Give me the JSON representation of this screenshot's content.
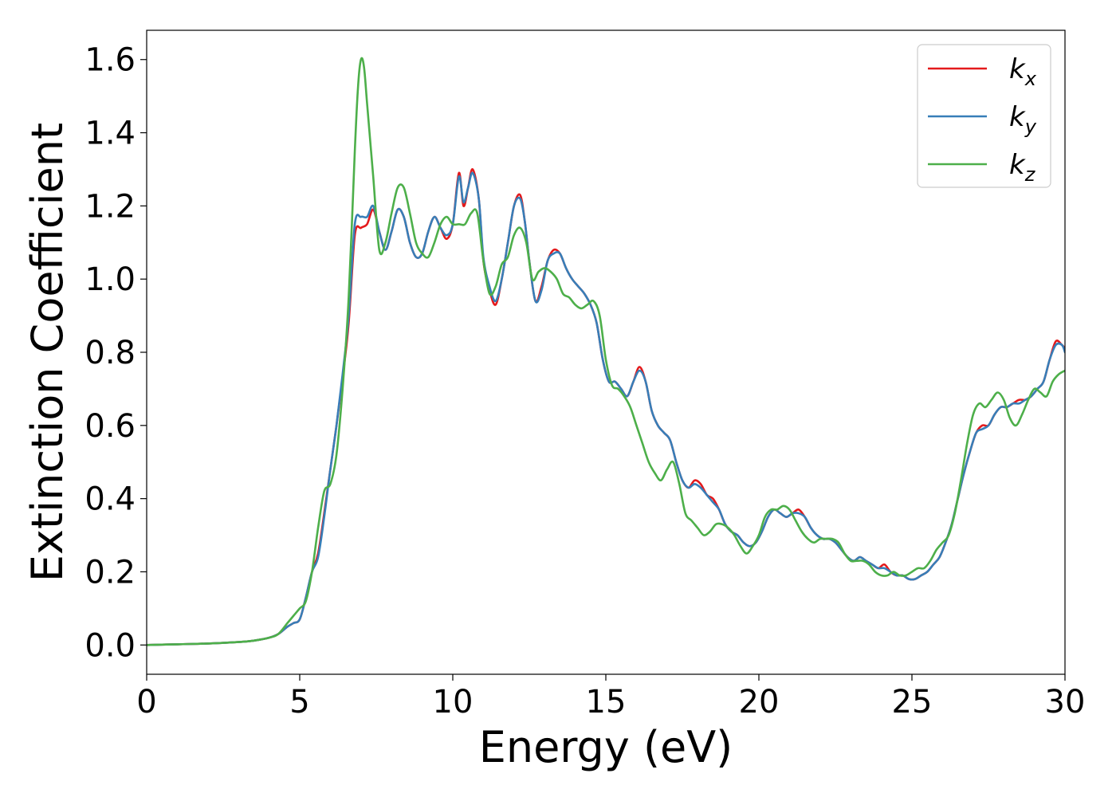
{
  "chart_data": {
    "type": "line",
    "title": "",
    "xlabel": "Energy (eV)",
    "ylabel": "Extinction Coefficient",
    "xlim": [
      0,
      30
    ],
    "ylim": [
      -0.08,
      1.68
    ],
    "xticks": [
      0,
      5,
      10,
      15,
      20,
      25,
      30
    ],
    "yticks": [
      0.0,
      0.2,
      0.4,
      0.6,
      0.8,
      1.0,
      1.2,
      1.4,
      1.6
    ],
    "grid": false,
    "legend_position": "top-right",
    "series": [
      {
        "name": "k_x",
        "label_main": "k",
        "label_sub": "x",
        "color": "#e41a1c",
        "x": [
          0,
          1,
          2,
          3,
          3.5,
          4,
          4.3,
          4.6,
          4.8,
          5,
          5.2,
          5.4,
          5.6,
          5.8,
          6,
          6.2,
          6.4,
          6.6,
          6.8,
          7,
          7.2,
          7.4,
          7.6,
          7.8,
          8,
          8.2,
          8.4,
          8.6,
          8.8,
          9,
          9.2,
          9.4,
          9.6,
          9.8,
          10,
          10.2,
          10.35,
          10.5,
          10.65,
          10.85,
          11,
          11.2,
          11.4,
          11.6,
          11.8,
          12,
          12.2,
          12.35,
          12.5,
          12.7,
          12.9,
          13.1,
          13.3,
          13.5,
          13.7,
          13.9,
          14.1,
          14.3,
          14.5,
          14.7,
          14.9,
          15.1,
          15.3,
          15.5,
          15.7,
          15.9,
          16.1,
          16.3,
          16.5,
          16.7,
          16.9,
          17.1,
          17.3,
          17.5,
          17.7,
          17.9,
          18.1,
          18.3,
          18.5,
          18.7,
          18.9,
          19.1,
          19.3,
          19.5,
          19.7,
          19.9,
          20.1,
          20.3,
          20.5,
          20.7,
          20.9,
          21.1,
          21.3,
          21.5,
          21.7,
          21.9,
          22.1,
          22.3,
          22.5,
          22.7,
          22.9,
          23.1,
          23.3,
          23.5,
          23.7,
          23.9,
          24.1,
          24.3,
          24.5,
          24.7,
          24.9,
          25.1,
          25.3,
          25.5,
          25.7,
          25.9,
          26.1,
          26.3,
          26.5,
          26.7,
          26.9,
          27.1,
          27.3,
          27.5,
          27.7,
          27.9,
          28.1,
          28.3,
          28.5,
          28.7,
          28.9,
          29.1,
          29.3,
          29.5,
          29.7,
          29.9,
          30
        ],
        "y": [
          0,
          0.002,
          0.004,
          0.008,
          0.012,
          0.02,
          0.03,
          0.05,
          0.06,
          0.07,
          0.13,
          0.2,
          0.25,
          0.36,
          0.48,
          0.6,
          0.73,
          0.88,
          1.12,
          1.14,
          1.15,
          1.19,
          1.13,
          1.08,
          1.13,
          1.19,
          1.17,
          1.1,
          1.06,
          1.07,
          1.13,
          1.17,
          1.14,
          1.11,
          1.15,
          1.29,
          1.2,
          1.25,
          1.3,
          1.22,
          1.05,
          0.97,
          0.93,
          1.0,
          1.1,
          1.2,
          1.23,
          1.16,
          1.05,
          0.94,
          0.98,
          1.05,
          1.08,
          1.07,
          1.03,
          1.0,
          0.98,
          0.96,
          0.93,
          0.88,
          0.78,
          0.72,
          0.72,
          0.7,
          0.68,
          0.72,
          0.76,
          0.72,
          0.64,
          0.6,
          0.58,
          0.56,
          0.5,
          0.45,
          0.43,
          0.45,
          0.44,
          0.41,
          0.4,
          0.37,
          0.33,
          0.31,
          0.3,
          0.28,
          0.27,
          0.28,
          0.31,
          0.35,
          0.37,
          0.36,
          0.35,
          0.36,
          0.37,
          0.35,
          0.32,
          0.3,
          0.29,
          0.29,
          0.28,
          0.26,
          0.24,
          0.23,
          0.24,
          0.23,
          0.22,
          0.21,
          0.22,
          0.2,
          0.19,
          0.19,
          0.18,
          0.18,
          0.19,
          0.2,
          0.22,
          0.24,
          0.28,
          0.33,
          0.4,
          0.47,
          0.53,
          0.58,
          0.6,
          0.6,
          0.63,
          0.65,
          0.65,
          0.66,
          0.67,
          0.67,
          0.68,
          0.7,
          0.72,
          0.78,
          0.83,
          0.82,
          0.81
        ]
      },
      {
        "name": "k_y",
        "label_main": "k",
        "label_sub": "y",
        "color": "#377eb8",
        "x": [
          0,
          1,
          2,
          3,
          3.5,
          4,
          4.3,
          4.6,
          4.8,
          5,
          5.2,
          5.4,
          5.6,
          5.8,
          6,
          6.2,
          6.4,
          6.6,
          6.8,
          7,
          7.2,
          7.4,
          7.6,
          7.8,
          8,
          8.2,
          8.4,
          8.6,
          8.8,
          9,
          9.2,
          9.4,
          9.6,
          9.8,
          10,
          10.2,
          10.35,
          10.5,
          10.65,
          10.85,
          11,
          11.2,
          11.4,
          11.6,
          11.8,
          12,
          12.2,
          12.35,
          12.5,
          12.7,
          12.9,
          13.1,
          13.3,
          13.5,
          13.7,
          13.9,
          14.1,
          14.3,
          14.5,
          14.7,
          14.9,
          15.1,
          15.3,
          15.5,
          15.7,
          15.9,
          16.1,
          16.3,
          16.5,
          16.7,
          16.9,
          17.1,
          17.3,
          17.5,
          17.7,
          17.9,
          18.1,
          18.3,
          18.5,
          18.7,
          18.9,
          19.1,
          19.3,
          19.5,
          19.7,
          19.9,
          20.1,
          20.3,
          20.5,
          20.7,
          20.9,
          21.1,
          21.3,
          21.5,
          21.7,
          21.9,
          22.1,
          22.3,
          22.5,
          22.7,
          22.9,
          23.1,
          23.3,
          23.5,
          23.7,
          23.9,
          24.1,
          24.3,
          24.5,
          24.7,
          24.9,
          25.1,
          25.3,
          25.5,
          25.7,
          25.9,
          26.1,
          26.3,
          26.5,
          26.7,
          26.9,
          27.1,
          27.3,
          27.5,
          27.7,
          27.9,
          28.1,
          28.3,
          28.5,
          28.7,
          28.9,
          29.1,
          29.3,
          29.5,
          29.7,
          29.9,
          30
        ],
        "y": [
          0,
          0.002,
          0.004,
          0.008,
          0.012,
          0.02,
          0.03,
          0.05,
          0.06,
          0.07,
          0.13,
          0.2,
          0.24,
          0.35,
          0.48,
          0.6,
          0.74,
          0.9,
          1.15,
          1.17,
          1.17,
          1.2,
          1.13,
          1.08,
          1.13,
          1.19,
          1.17,
          1.1,
          1.06,
          1.07,
          1.13,
          1.17,
          1.14,
          1.12,
          1.15,
          1.28,
          1.21,
          1.25,
          1.29,
          1.22,
          1.06,
          0.98,
          0.94,
          1.0,
          1.1,
          1.2,
          1.22,
          1.16,
          1.05,
          0.94,
          0.97,
          1.05,
          1.07,
          1.07,
          1.03,
          1.0,
          0.98,
          0.96,
          0.93,
          0.88,
          0.78,
          0.72,
          0.72,
          0.7,
          0.68,
          0.72,
          0.75,
          0.72,
          0.64,
          0.6,
          0.58,
          0.56,
          0.5,
          0.45,
          0.43,
          0.44,
          0.43,
          0.41,
          0.39,
          0.37,
          0.33,
          0.31,
          0.3,
          0.28,
          0.27,
          0.28,
          0.31,
          0.35,
          0.37,
          0.36,
          0.35,
          0.36,
          0.36,
          0.35,
          0.32,
          0.3,
          0.29,
          0.29,
          0.28,
          0.26,
          0.24,
          0.23,
          0.24,
          0.23,
          0.22,
          0.21,
          0.21,
          0.2,
          0.19,
          0.19,
          0.18,
          0.18,
          0.19,
          0.2,
          0.22,
          0.24,
          0.28,
          0.33,
          0.4,
          0.47,
          0.53,
          0.58,
          0.59,
          0.6,
          0.63,
          0.65,
          0.65,
          0.66,
          0.66,
          0.67,
          0.68,
          0.7,
          0.72,
          0.78,
          0.82,
          0.82,
          0.8
        ]
      },
      {
        "name": "k_z",
        "label_main": "k",
        "label_sub": "z",
        "color": "#4daf4a",
        "x": [
          0,
          1,
          2,
          3,
          3.5,
          4,
          4.3,
          4.6,
          4.8,
          5,
          5.2,
          5.4,
          5.6,
          5.8,
          6,
          6.2,
          6.4,
          6.6,
          6.8,
          6.9,
          7,
          7.1,
          7.2,
          7.4,
          7.6,
          7.8,
          8,
          8.2,
          8.4,
          8.6,
          8.8,
          9,
          9.2,
          9.4,
          9.6,
          9.8,
          10,
          10.2,
          10.4,
          10.6,
          10.8,
          11,
          11.2,
          11.4,
          11.6,
          11.8,
          12,
          12.2,
          12.4,
          12.6,
          12.8,
          13,
          13.2,
          13.4,
          13.6,
          13.8,
          14,
          14.2,
          14.4,
          14.6,
          14.8,
          15,
          15.2,
          15.4,
          15.6,
          15.8,
          16,
          16.2,
          16.4,
          16.6,
          16.8,
          17,
          17.2,
          17.4,
          17.6,
          17.8,
          18,
          18.2,
          18.4,
          18.6,
          18.8,
          19,
          19.2,
          19.4,
          19.6,
          19.8,
          20,
          20.2,
          20.4,
          20.6,
          20.8,
          21,
          21.2,
          21.4,
          21.6,
          21.8,
          22,
          22.2,
          22.4,
          22.6,
          22.8,
          23,
          23.2,
          23.4,
          23.6,
          23.8,
          24,
          24.2,
          24.4,
          24.6,
          24.8,
          25,
          25.2,
          25.4,
          25.6,
          25.8,
          26,
          26.2,
          26.4,
          26.6,
          26.8,
          27,
          27.2,
          27.4,
          27.6,
          27.8,
          28,
          28.2,
          28.4,
          28.6,
          28.8,
          29,
          29.2,
          29.4,
          29.6,
          29.8,
          30
        ],
        "y": [
          0,
          0.002,
          0.004,
          0.008,
          0.012,
          0.02,
          0.03,
          0.06,
          0.08,
          0.1,
          0.12,
          0.2,
          0.32,
          0.42,
          0.44,
          0.52,
          0.7,
          0.95,
          1.35,
          1.52,
          1.6,
          1.58,
          1.48,
          1.28,
          1.08,
          1.1,
          1.18,
          1.25,
          1.25,
          1.18,
          1.1,
          1.07,
          1.06,
          1.1,
          1.15,
          1.17,
          1.15,
          1.15,
          1.15,
          1.18,
          1.18,
          1.05,
          0.96,
          0.98,
          1.04,
          1.06,
          1.12,
          1.14,
          1.1,
          1.0,
          1.02,
          1.03,
          1.02,
          1.0,
          0.96,
          0.95,
          0.93,
          0.92,
          0.93,
          0.94,
          0.9,
          0.78,
          0.71,
          0.7,
          0.68,
          0.65,
          0.6,
          0.55,
          0.5,
          0.47,
          0.45,
          0.48,
          0.5,
          0.44,
          0.36,
          0.34,
          0.32,
          0.3,
          0.31,
          0.33,
          0.33,
          0.32,
          0.3,
          0.27,
          0.25,
          0.27,
          0.3,
          0.35,
          0.37,
          0.37,
          0.38,
          0.37,
          0.34,
          0.31,
          0.29,
          0.28,
          0.29,
          0.29,
          0.29,
          0.28,
          0.25,
          0.23,
          0.23,
          0.23,
          0.22,
          0.2,
          0.19,
          0.19,
          0.2,
          0.19,
          0.19,
          0.2,
          0.21,
          0.21,
          0.23,
          0.26,
          0.28,
          0.3,
          0.36,
          0.45,
          0.55,
          0.63,
          0.66,
          0.65,
          0.67,
          0.69,
          0.67,
          0.62,
          0.6,
          0.63,
          0.67,
          0.7,
          0.69,
          0.68,
          0.72,
          0.74,
          0.75
        ]
      }
    ]
  }
}
